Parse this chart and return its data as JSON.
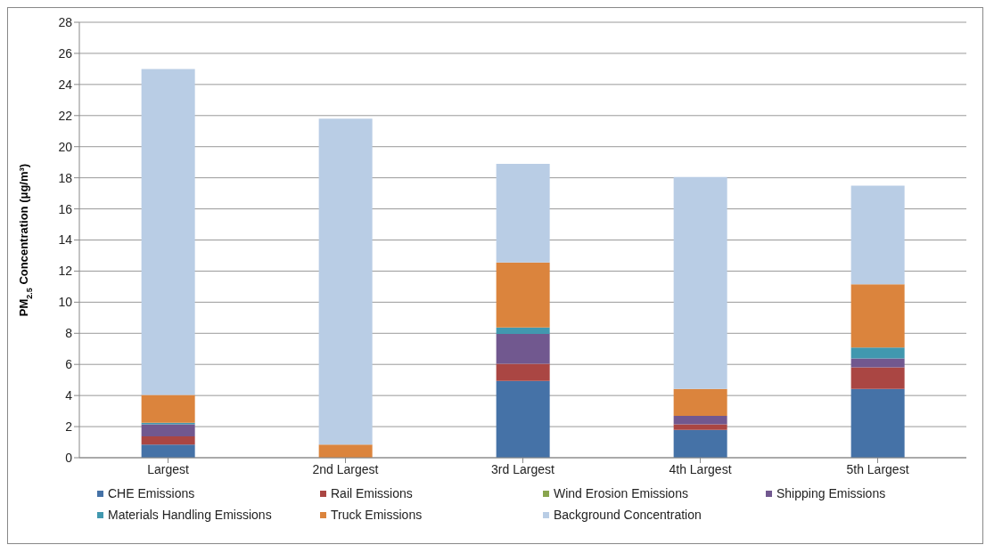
{
  "chart_data": {
    "type": "bar",
    "stacked": true,
    "ylabel": "PM$_{2.5}$ Concentration (μg/m³)",
    "categories": [
      "Largest",
      "2nd Largest",
      "3rd Largest",
      "4th Largest",
      "5th Largest"
    ],
    "series": [
      {
        "name": "CHE Emissions",
        "color": "#4572a7",
        "values": [
          0.85,
          0,
          4.94,
          1.79,
          4.42
        ]
      },
      {
        "name": "Rail Emissions",
        "color": "#aa4643",
        "values": [
          0.53,
          0,
          1.1,
          0.36,
          1.39
        ]
      },
      {
        "name": "Wind Erosion Emissions",
        "color": "#89a54e",
        "values": [
          0,
          0,
          0,
          0,
          0
        ]
      },
      {
        "name": "Shipping Emissions",
        "color": "#71588f",
        "values": [
          0.77,
          0,
          1.92,
          0.54,
          0.57
        ]
      },
      {
        "name": "Materials Handling Emissions",
        "color": "#4198af",
        "values": [
          0.1,
          0,
          0.42,
          0,
          0.7
        ]
      },
      {
        "name": "Truck Emissions",
        "color": "#db843d",
        "values": [
          1.79,
          0.85,
          4.18,
          1.73,
          4.07
        ]
      },
      {
        "name": "Background Concentration",
        "color": "#b9cde5",
        "values": [
          20.96,
          20.95,
          6.34,
          13.63,
          6.35
        ]
      }
    ],
    "ylim": [
      0,
      28
    ],
    "yticks": [
      0,
      2,
      4,
      6,
      8,
      10,
      12,
      14,
      16,
      18,
      20,
      22,
      24,
      26,
      28
    ],
    "grid": "y",
    "legend": "bottom"
  }
}
